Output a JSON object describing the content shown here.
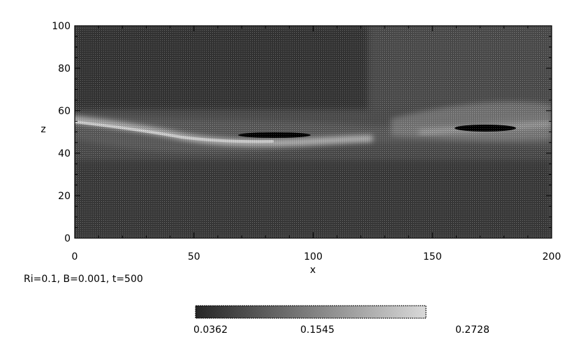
{
  "chart_data": {
    "type": "heatmap",
    "title": "",
    "xlabel": "x",
    "ylabel": "z",
    "xlim": [
      0,
      200
    ],
    "ylim": [
      0,
      100
    ],
    "xticks": [
      "0",
      "50",
      "100",
      "150",
      "200"
    ],
    "yticks": [
      "0",
      "20",
      "40",
      "60",
      "80",
      "100"
    ],
    "colormap": [
      "#000000",
      "#ffffff"
    ],
    "colorbar": {
      "range": [
        0.0362,
        0.2728
      ],
      "tick_labels": [
        "0.0362",
        "0.1545",
        "0.2728"
      ]
    },
    "features": [
      {
        "kind": "bright shear layer",
        "x_range": [
          0,
          125
        ],
        "z_approx": [
          55,
          47
        ]
      },
      {
        "kind": "dark band",
        "x_range": [
          68,
          98
        ],
        "z_approx": 48
      },
      {
        "kind": "dark band",
        "x_range": [
          160,
          188
        ],
        "z_approx": 52
      },
      {
        "kind": "bright region",
        "x_range": [
          150,
          200
        ],
        "z_approx": [
          50,
          62
        ]
      }
    ],
    "annotation": "Ri=0.1, B=0.001, t=500"
  }
}
